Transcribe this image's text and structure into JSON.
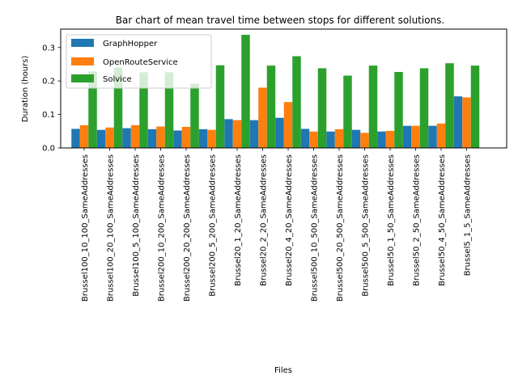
{
  "chart_data": {
    "type": "bar",
    "title": "Bar chart of mean travel time between stops for different solutions.",
    "xlabel": "Files",
    "ylabel": "Duration (hours)",
    "ylim": [
      0,
      0.355
    ],
    "yticks": [
      "0.0",
      "0.1",
      "0.2",
      "0.3"
    ],
    "legend_position": "top-left",
    "grid": false,
    "categories": [
      "Brussel100_10_100_SameAddresses",
      "Brussel100_20_100_SameAddresses",
      "Brussel100_5_100_SameAddresses",
      "Brussel200_10_200_SameAddresses",
      "Brussel200_20_200_SameAddresses",
      "Brussel200_5_200_SameAddresses",
      "Brussel20_1_20_SameAddresses",
      "Brussel20_2_20_SameAddresses",
      "Brussel20_4_20_SameAddresses",
      "Brussel500_10_500_SameAddresses",
      "Brussel500_20_500_SameAddresses",
      "Brussel500_5_500_SameAddresses",
      "Brussel50_1_50_SameAddresses",
      "Brussel50_2_50_SameAddresses",
      "Brussel50_4_50_SameAddresses",
      "Brussel5_1_5_SameAddresses"
    ],
    "series": [
      {
        "name": "GraphHopper",
        "color": "#1f77b4",
        "values": [
          0.057,
          0.054,
          0.059,
          0.056,
          0.052,
          0.056,
          0.086,
          0.083,
          0.09,
          0.057,
          0.049,
          0.054,
          0.049,
          0.066,
          0.066,
          0.154
        ]
      },
      {
        "name": "OpenRouteService",
        "color": "#ff7f0e",
        "values": [
          0.068,
          0.061,
          0.068,
          0.064,
          0.063,
          0.054,
          0.083,
          0.18,
          0.137,
          0.049,
          0.056,
          0.045,
          0.051,
          0.066,
          0.073,
          0.151
        ]
      },
      {
        "name": "Solvice",
        "color": "#2ca02c",
        "values": [
          0.229,
          0.24,
          0.226,
          0.226,
          0.192,
          0.247,
          0.338,
          0.246,
          0.274,
          0.238,
          0.216,
          0.246,
          0.227,
          0.238,
          0.253,
          0.246
        ]
      }
    ]
  }
}
